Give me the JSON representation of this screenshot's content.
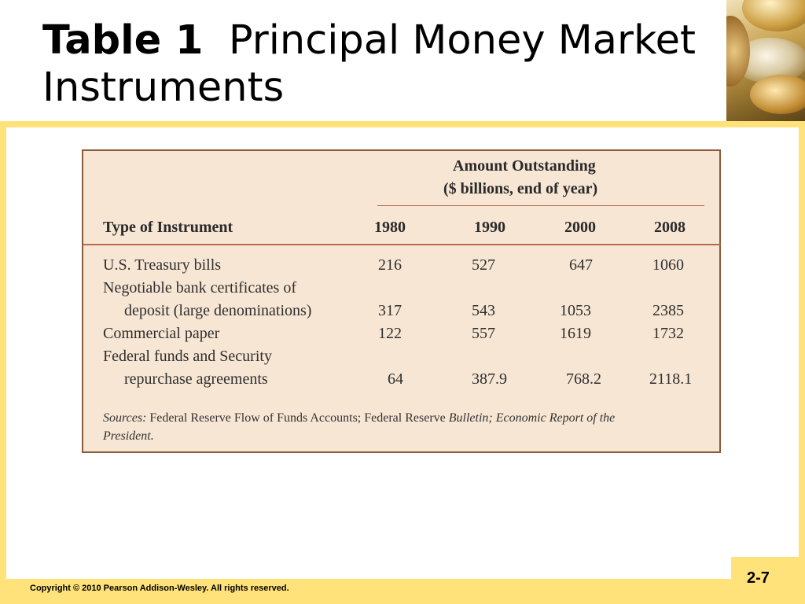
{
  "slide": {
    "title_bold": "Table 1",
    "title_rest": "Principal Money Market Instruments",
    "copyright": "Copyright © 2010 Pearson Addison-Wesley. All rights reserved.",
    "page_number": "2-7"
  },
  "table": {
    "amount_header_line1": "Amount Outstanding",
    "amount_header_line2": "($ billions, end of year)",
    "type_header": "Type of Instrument",
    "years": [
      "1980",
      "1990",
      "2000",
      "2008"
    ],
    "rows": [
      {
        "lines": [
          "U.S. Treasury bills"
        ],
        "values": [
          "216",
          "527",
          "647",
          "1060"
        ]
      },
      {
        "lines": [
          "Negotiable bank certificates of",
          "deposit (large denominations)"
        ],
        "values": [
          "317",
          "543",
          "1053",
          "2385"
        ]
      },
      {
        "lines": [
          "Commercial paper"
        ],
        "values": [
          "122",
          "557",
          "1619",
          "1732"
        ]
      },
      {
        "lines": [
          "Federal funds and Security",
          "repurchase agreements"
        ],
        "values": [
          "64",
          "387.9",
          "768.2",
          "2118.1"
        ]
      }
    ],
    "sources": {
      "label": "Sources:",
      "text": "Federal Reserve Flow of Funds Accounts; Federal Reserve",
      "italic1": "Bulletin; Economic Report of the",
      "italic2": "President."
    }
  },
  "colors": {
    "frame": "#ffe27a",
    "table_bg": "#f7e6d4",
    "table_border": "#8c5a38",
    "rule": "#b86a50"
  },
  "icons": [
    "coins-image"
  ]
}
